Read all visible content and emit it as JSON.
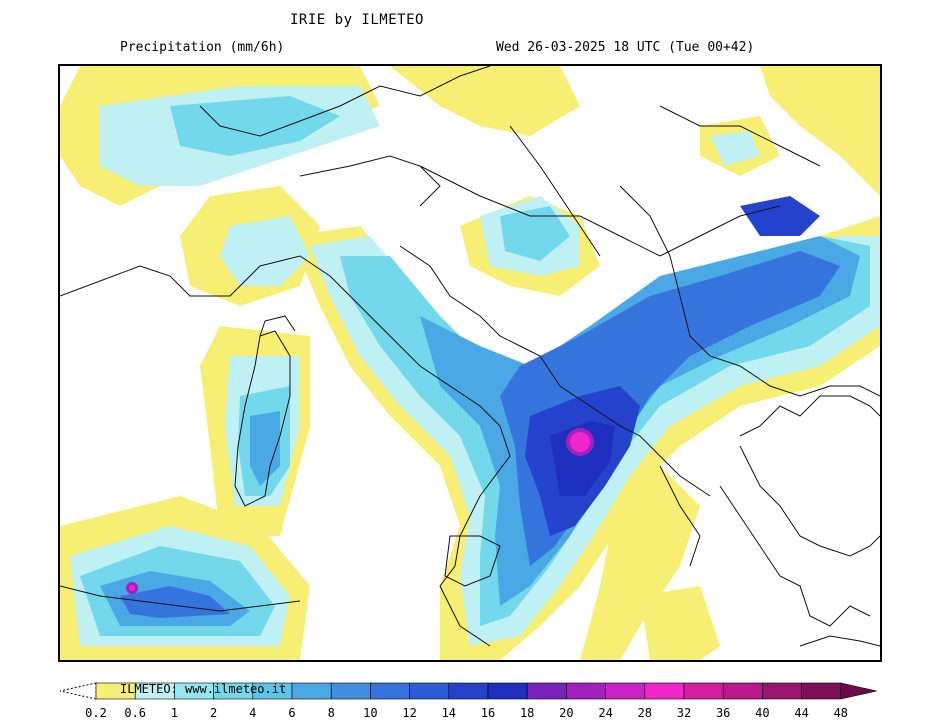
{
  "header": {
    "title": "IRIE by ILMETEO",
    "variable": "Precipitation (mm/6h)",
    "valid_time": "Wed 26-03-2025 18 UTC (Tue 00+42)"
  },
  "legend": {
    "credit": "ILMETEO: www.ilmeteo.it",
    "unit": "mm/6h",
    "ticks": [
      "0.2",
      "0.6",
      "1",
      "2",
      "4",
      "6",
      "8",
      "10",
      "12",
      "14",
      "16",
      "18",
      "20",
      "24",
      "28",
      "32",
      "36",
      "40",
      "44",
      "48"
    ],
    "colors": [
      "#f7ee74",
      "#bff0f4",
      "#96e6f0",
      "#73d8ec",
      "#5cc4e8",
      "#4aa8e4",
      "#3f8ee0",
      "#3574dc",
      "#2d5ad6",
      "#2542cc",
      "#1e2ebe",
      "#7a22be",
      "#a020c0",
      "#cc22c4",
      "#f026c8",
      "#d41ca0",
      "#b81888",
      "#9a1470",
      "#7c0f58"
    ],
    "undershoot_color": "#ffffff",
    "overshoot_color": "#6a0c4a"
  }
}
